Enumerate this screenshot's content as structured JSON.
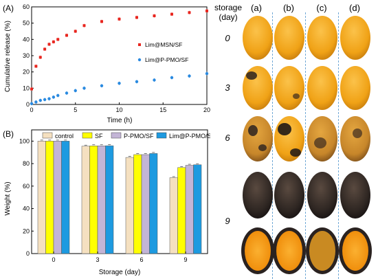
{
  "chart_data": [
    {
      "panel_label": "(A)",
      "type": "scatter",
      "xlabel": "Time (h)",
      "ylabel": "Cumulative release (%)",
      "xlim": [
        0,
        20
      ],
      "ylim": [
        0,
        60
      ],
      "xticks": [
        "0",
        "5",
        "10",
        "15",
        "20"
      ],
      "yticks": [
        "0",
        "10",
        "20",
        "30",
        "40",
        "50",
        "60"
      ],
      "legend_position": "center-right",
      "series": [
        {
          "name": "Lim@MSN/SF",
          "color": "#e8261f",
          "marker": "square",
          "x": [
            0,
            0.5,
            1,
            1.5,
            2,
            2.5,
            3,
            4,
            5,
            6,
            8,
            10,
            12,
            14,
            16,
            18,
            20
          ],
          "y": [
            9.5,
            23.5,
            29,
            34,
            37,
            38.5,
            40,
            42.5,
            45,
            48.5,
            51,
            52.5,
            53.5,
            54.5,
            55.5,
            56.5,
            57.5
          ]
        },
        {
          "name": "Lim@P-PMO/SF",
          "color": "#2a8ae0",
          "marker": "circle",
          "x": [
            0,
            0.5,
            1,
            1.5,
            2,
            2.5,
            3,
            4,
            5,
            6,
            8,
            10,
            12,
            14,
            16,
            18,
            20
          ],
          "y": [
            0.5,
            1.5,
            2.5,
            3,
            3.5,
            4.5,
            5.5,
            7,
            8.5,
            10,
            11.5,
            13,
            14,
            15,
            16.5,
            17.5,
            19
          ]
        }
      ]
    },
    {
      "panel_label": "(B)",
      "type": "bar",
      "xlabel": "Storage (day)",
      "ylabel": "Weight (%)",
      "ylim": [
        0,
        110
      ],
      "yticks": [
        "0",
        "20",
        "40",
        "60",
        "80",
        "100"
      ],
      "categories": [
        "0",
        "3",
        "6",
        "9"
      ],
      "legend_position": "top",
      "series": [
        {
          "name": "control",
          "color": "#f5e0c0",
          "values": [
            100,
            95.5,
            85.5,
            67.5
          ]
        },
        {
          "name": "SF",
          "color": "#ffff00",
          "values": [
            100,
            95.8,
            88,
            76.5
          ]
        },
        {
          "name": "P-PMO/SF",
          "color": "#c3b5d6",
          "values": [
            100,
            95.8,
            88,
            78.5
          ]
        },
        {
          "name": "Lim@P-PMO/SF",
          "color": "#1d9ae0",
          "values": [
            100,
            95.9,
            89,
            79
          ]
        }
      ]
    }
  ],
  "photo_panel": {
    "header": "storage\n(day)",
    "columns": [
      "(a)",
      "(b)",
      "(c)",
      "(d)"
    ],
    "days": [
      "0",
      "3",
      "6",
      "9"
    ],
    "colors": {
      "fresh": "#f2a418",
      "ripe": "#e59a1a",
      "spotted": "#c78a2a",
      "rotten": "#2a2220",
      "flesh": "#f29c1a",
      "separator": "#6fa8d6"
    }
  }
}
